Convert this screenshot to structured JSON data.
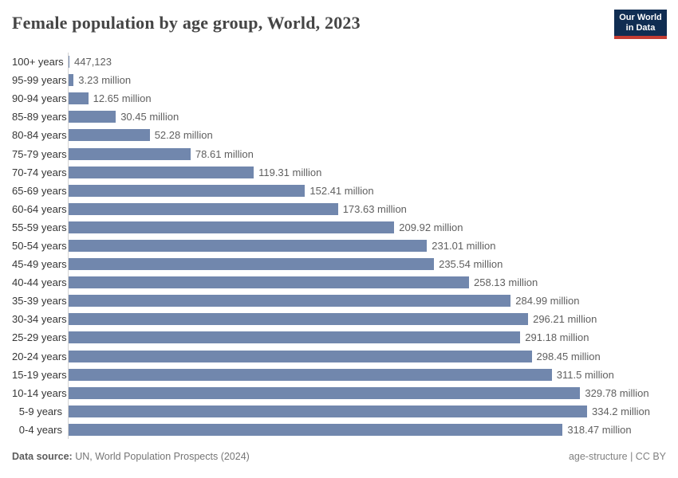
{
  "header": {
    "title": "Female population by age group, World, 2023",
    "logo": {
      "line1": "Our World",
      "line2": "in Data",
      "bg_color": "#102d52",
      "accent_color": "#c43d33",
      "text_color": "#ffffff"
    }
  },
  "chart_data": {
    "type": "bar",
    "orientation": "horizontal",
    "title": "Female population by age group, World, 2023",
    "xlabel": "",
    "ylabel": "",
    "grid": false,
    "legend": false,
    "xlim": [
      0,
      334.2
    ],
    "bar_color": "#7187ad",
    "categories": [
      "100+ years",
      "95-99 years",
      "90-94 years",
      "85-89 years",
      "80-84 years",
      "75-79 years",
      "70-74 years",
      "65-69 years",
      "60-64 years",
      "55-59 years",
      "50-54 years",
      "45-49 years",
      "40-44 years",
      "35-39 years",
      "30-34 years",
      "25-29 years",
      "20-24 years",
      "15-19 years",
      "10-14 years",
      "5-9 years",
      "0-4 years"
    ],
    "values_millions": [
      0.447123,
      3.23,
      12.65,
      30.45,
      52.28,
      78.61,
      119.31,
      152.41,
      173.63,
      209.92,
      231.01,
      235.54,
      258.13,
      284.99,
      296.21,
      291.18,
      298.45,
      311.5,
      329.78,
      334.2,
      318.47
    ],
    "value_labels": [
      "447,123",
      "3.23 million",
      "12.65 million",
      "30.45 million",
      "52.28 million",
      "78.61 million",
      "119.31 million",
      "152.41 million",
      "173.63 million",
      "209.92 million",
      "231.01 million",
      "235.54 million",
      "258.13 million",
      "284.99 million",
      "296.21 million",
      "291.18 million",
      "298.45 million",
      "311.5 million",
      "329.78 million",
      "334.2 million",
      "318.47 million"
    ]
  },
  "footer": {
    "source_label": "Data source:",
    "source_text": " UN, World Population Prospects (2024)",
    "note_right": "age-structure | CC BY"
  }
}
